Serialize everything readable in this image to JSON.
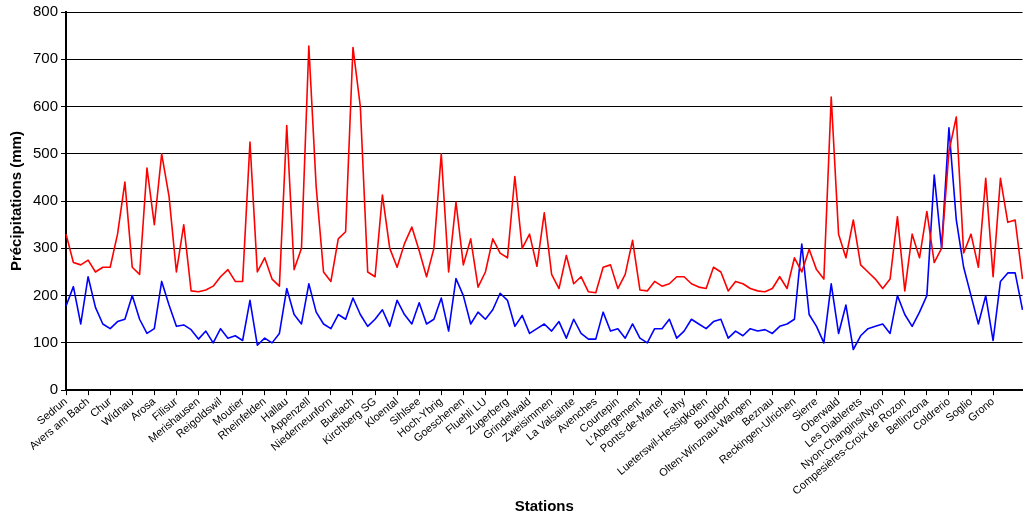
{
  "chart_data": {
    "type": "line",
    "xlabel": "Stations",
    "ylabel": "Précipitations (mm)",
    "categories": [
      "Sedrun",
      null,
      null,
      "Avers am Bach",
      null,
      null,
      "Chur",
      null,
      null,
      "Widnau",
      null,
      null,
      "Arosa",
      null,
      null,
      "Filisur",
      null,
      null,
      "Merishausen",
      null,
      null,
      "Reigoldswil",
      null,
      null,
      "Moutier",
      null,
      null,
      "Rheinfelden",
      null,
      null,
      "Hallau",
      null,
      null,
      "Appenzell",
      null,
      null,
      "Niederneunforn",
      null,
      null,
      "Buelach",
      null,
      null,
      "Kirchberg SG",
      null,
      null,
      "Kloental",
      null,
      null,
      "Sihlsee",
      null,
      null,
      "Hoch-Ybrig",
      null,
      null,
      "Goeschenen",
      null,
      null,
      "Fluehli LU",
      null,
      null,
      "Zugerberg",
      null,
      null,
      "Grindelwald",
      null,
      null,
      "Zweisimmen",
      null,
      null,
      "La Valsainte",
      null,
      null,
      "Avenches",
      null,
      null,
      "Courtepin",
      null,
      null,
      "L'Abergement",
      null,
      null,
      "Ponts-de-Martel",
      null,
      null,
      "Fahy",
      null,
      null,
      "Lueterswil-Hessigkofen",
      null,
      null,
      "Burgdorf",
      null,
      null,
      "Olten-Winznau-Wangen",
      null,
      null,
      "Beznau",
      null,
      null,
      "Reckingen-Ulrichen",
      null,
      null,
      "Sierre",
      null,
      null,
      "Oberwald",
      null,
      null,
      "Les Diablerets",
      null,
      null,
      "Nyon-Changins/Nyon",
      null,
      null,
      "Compesières-Croix de Rozon",
      null,
      null,
      "Bellinzona",
      null,
      null,
      "Coldrerio",
      null,
      null,
      "Soglio",
      null,
      null,
      "Grono",
      null,
      null,
      null,
      null
    ],
    "series": [
      {
        "color": "#ff0000",
        "values": [
          330,
          270,
          265,
          275,
          250,
          260,
          260,
          330,
          440,
          260,
          245,
          470,
          350,
          500,
          410,
          250,
          350,
          210,
          208,
          212,
          220,
          240,
          255,
          230,
          230,
          525,
          250,
          280,
          235,
          220,
          560,
          255,
          300,
          728,
          430,
          250,
          230,
          320,
          335,
          725,
          600,
          250,
          240,
          413,
          300,
          260,
          310,
          345,
          295,
          240,
          300,
          500,
          250,
          398,
          265,
          320,
          218,
          250,
          320,
          290,
          280,
          452,
          300,
          330,
          262,
          375,
          245,
          215,
          285,
          225,
          240,
          208,
          206,
          260,
          265,
          215,
          245,
          317,
          212,
          210,
          230,
          220,
          225,
          240,
          240,
          225,
          218,
          215,
          260,
          250,
          210,
          230,
          225,
          215,
          210,
          208,
          215,
          240,
          215,
          280,
          250,
          298,
          255,
          235,
          620,
          330,
          280,
          360,
          265,
          250,
          235,
          215,
          235,
          367,
          210,
          330,
          280,
          378,
          270,
          300,
          505,
          578,
          290,
          330,
          260,
          448,
          240,
          448,
          355,
          360,
          235
        ]
      },
      {
        "color": "#0000ff",
        "values": [
          178,
          219,
          140,
          240,
          175,
          140,
          130,
          145,
          150,
          200,
          150,
          120,
          130,
          230,
          180,
          135,
          138,
          128,
          108,
          125,
          100,
          130,
          110,
          115,
          105,
          190,
          95,
          110,
          100,
          120,
          215,
          160,
          140,
          225,
          165,
          140,
          130,
          160,
          150,
          195,
          160,
          135,
          150,
          170,
          135,
          190,
          160,
          140,
          185,
          140,
          150,
          195,
          125,
          236,
          200,
          140,
          165,
          150,
          170,
          205,
          190,
          135,
          158,
          120,
          130,
          140,
          125,
          145,
          110,
          150,
          120,
          108,
          108,
          165,
          125,
          130,
          110,
          140,
          110,
          100,
          130,
          130,
          150,
          110,
          125,
          150,
          140,
          130,
          145,
          150,
          110,
          125,
          115,
          130,
          125,
          128,
          120,
          135,
          140,
          150,
          309,
          160,
          135,
          100,
          225,
          120,
          180,
          86,
          115,
          130,
          135,
          140,
          120,
          200,
          160,
          135,
          165,
          200,
          455,
          300,
          555,
          360,
          260,
          200,
          140,
          200,
          105,
          230,
          248,
          248,
          170
        ]
      }
    ],
    "ylim": [
      0,
      800
    ],
    "yticks": [
      0,
      100,
      200,
      300,
      400,
      500,
      600,
      700,
      800
    ],
    "grid": "y"
  }
}
